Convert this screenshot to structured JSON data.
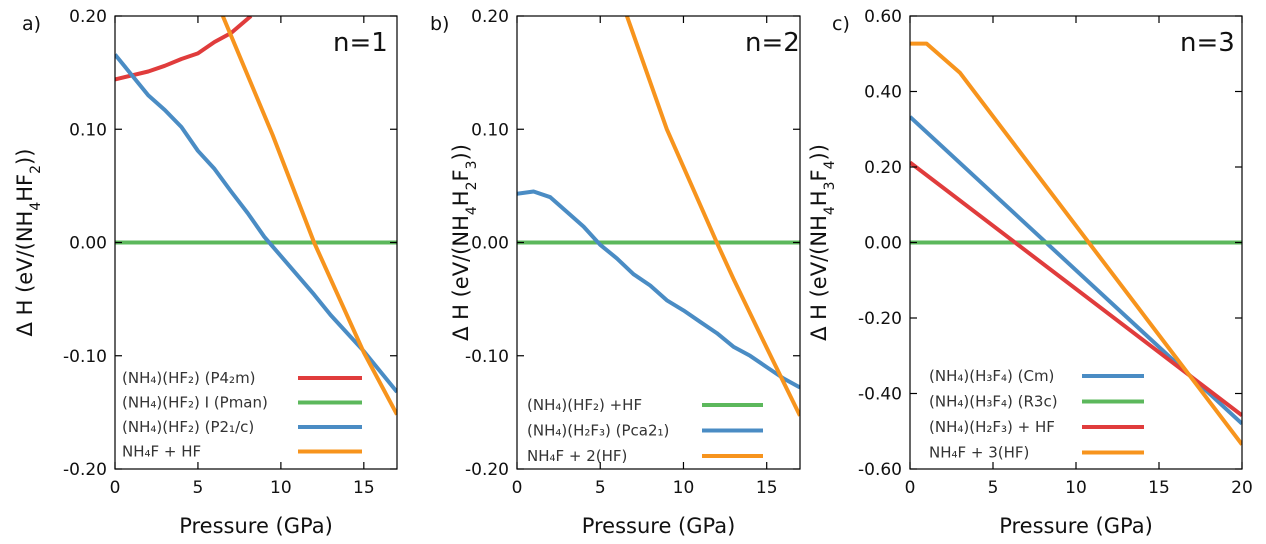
{
  "colors": {
    "red": "#e03c3c",
    "green": "#5cb85c",
    "blue": "#4a8cc4",
    "orange": "#f7941d"
  },
  "chart_data": [
    {
      "type": "line",
      "panel_label": "a)",
      "annotation": "n=1",
      "xlabel": "Pressure (GPa)",
      "ylabel": "Δ H (eV/(NH4HF2))",
      "xlim": [
        0,
        17
      ],
      "ylim": [
        -0.2,
        0.2
      ],
      "xticks": [
        "0",
        "5",
        "10",
        "15"
      ],
      "yticks": [
        "-0.20",
        "-0.10",
        "0.00",
        "0.10",
        "0.20"
      ],
      "legend_position": "bottom-right",
      "series": [
        {
          "name": "(NH₄)(HF₂)  (P4₂m)",
          "color": "red",
          "x": [
            0,
            2,
            3,
            4,
            5,
            6,
            7,
            8.2
          ],
          "y": [
            0.144,
            0.151,
            0.156,
            0.162,
            0.167,
            0.177,
            0.185,
            0.2
          ]
        },
        {
          "name": "(NH₄)(HF₂) I (Pman)",
          "color": "green",
          "x": [
            0,
            17
          ],
          "y": [
            0,
            0
          ]
        },
        {
          "name": "(NH₄)(HF₂)  (P2₁/c)",
          "color": "blue",
          "x": [
            0,
            1,
            2,
            3,
            4,
            5,
            6,
            7,
            8,
            9,
            10,
            11,
            12,
            13,
            14,
            15,
            16,
            17
          ],
          "y": [
            0.166,
            0.148,
            0.13,
            0.117,
            0.102,
            0.081,
            0.065,
            0.045,
            0.026,
            0.005,
            -0.012,
            -0.029,
            -0.046,
            -0.064,
            -0.08,
            -0.096,
            -0.114,
            -0.132
          ]
        },
        {
          "name": "NH₄F + HF",
          "color": "orange",
          "x": [
            6.5,
            9.5,
            12,
            15,
            17
          ],
          "y": [
            0.2,
            0.095,
            0.0,
            -0.097,
            -0.152
          ]
        }
      ]
    },
    {
      "type": "line",
      "panel_label": "b)",
      "annotation": "n=2",
      "xlabel": "",
      "ylabel": "Δ H (eV/(NH4H2F3))",
      "xlim": [
        0,
        17
      ],
      "ylim": [
        -0.2,
        0.2
      ],
      "xticks": [
        "0",
        "5",
        "10",
        "15"
      ],
      "yticks": [
        "-0.20",
        "-0.10",
        "0.00",
        "0.10",
        "0.20"
      ],
      "legend_position": "bottom-right",
      "series": [
        {
          "name": "(NH₄)(HF₂) +HF",
          "color": "green",
          "x": [
            0,
            17
          ],
          "y": [
            0,
            0
          ]
        },
        {
          "name": "(NH₄)(H₂F₃)  (Pca2₁)",
          "color": "blue",
          "x": [
            0,
            1,
            2,
            3,
            4,
            5,
            6,
            7,
            8,
            9,
            10,
            11,
            12,
            13,
            14,
            15,
            16,
            17
          ],
          "y": [
            0.043,
            0.045,
            0.04,
            0.027,
            0.014,
            -0.002,
            -0.014,
            -0.028,
            -0.038,
            -0.051,
            -0.06,
            -0.07,
            -0.08,
            -0.092,
            -0.1,
            -0.11,
            -0.12,
            -0.128
          ]
        },
        {
          "name": "NH₄F + 2(HF)",
          "color": "orange",
          "x": [
            6.6,
            9,
            12,
            13,
            15,
            17
          ],
          "y": [
            0.2,
            0.1,
            0.0,
            -0.032,
            -0.093,
            -0.153
          ]
        }
      ]
    },
    {
      "type": "line",
      "panel_label": "c)",
      "annotation": "n=3",
      "xlabel": "",
      "ylabel": "Δ H (eV/(NH4H3F4))",
      "xlim": [
        0,
        20
      ],
      "ylim": [
        -0.6,
        0.6
      ],
      "xticks": [
        "0",
        "5",
        "10",
        "15",
        "20"
      ],
      "yticks": [
        "-0.60",
        "-0.40",
        "-0.20",
        "0.00",
        "0.20",
        "0.40",
        "0.60"
      ],
      "legend_position": "bottom-left",
      "series": [
        {
          "name": "(NH₄)(H₃F₄)  (Cm)",
          "color": "blue",
          "x": [
            0,
            20
          ],
          "y": [
            0.333,
            -0.48
          ]
        },
        {
          "name": "(NH₄)(H₃F₄)  (R3c)",
          "color": "green",
          "x": [
            0,
            20
          ],
          "y": [
            0,
            0
          ]
        },
        {
          "name": "(NH₄)(H₂F₃) + HF",
          "color": "red",
          "x": [
            0,
            20
          ],
          "y": [
            0.212,
            -0.458
          ]
        },
        {
          "name": "NH₄F + 3(HF)",
          "color": "orange",
          "x": [
            0,
            1,
            3,
            20
          ],
          "y": [
            0.527,
            0.527,
            0.45,
            -0.535
          ]
        }
      ]
    }
  ]
}
